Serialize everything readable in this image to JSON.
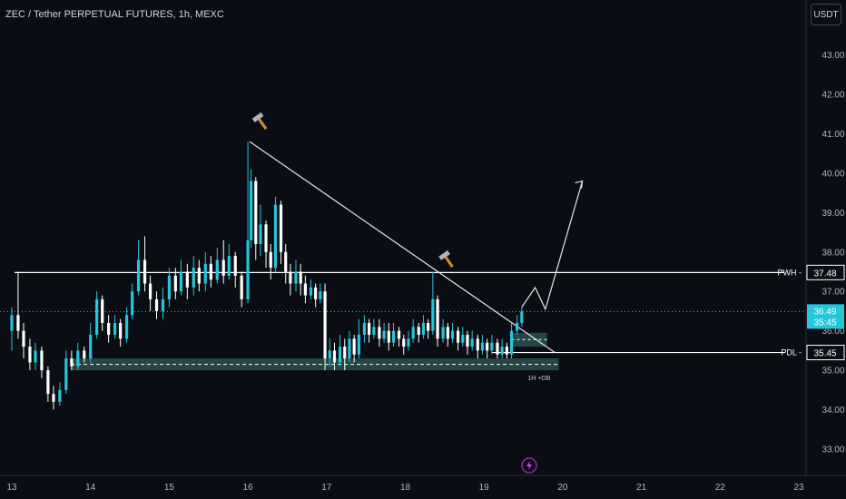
{
  "header": {
    "title": "ZEC / Tether PERPETUAL FUTURES, 1h, MEXC",
    "currency_button": "USDT"
  },
  "colors": {
    "background": "#0b0d14",
    "bull": "#26c6da",
    "bear": "#ffffff",
    "level_line": "#ffffff",
    "ob_zone": "#2f5a55",
    "price_box": "#26c6da"
  },
  "icons": {
    "hammer": "hammer-icon",
    "lightning": "lightning-icon"
  },
  "chart_data": {
    "type": "candlestick",
    "x_ticks": [
      "13",
      "14",
      "15",
      "16",
      "17",
      "18",
      "19",
      "20",
      "21",
      "22",
      "23"
    ],
    "y_ticks": [
      "33.00",
      "34.00",
      "35.00",
      "36.00",
      "37.00",
      "38.00",
      "39.00",
      "40.00",
      "41.00",
      "42.00",
      "43.00"
    ],
    "ylim": [
      32.5,
      43.8
    ],
    "xlim_days": [
      13,
      23
    ],
    "levels": [
      {
        "name": "PWH",
        "value": 37.48,
        "label": "37.48"
      },
      {
        "name": "PDL",
        "value": 35.45,
        "label": "35.45"
      }
    ],
    "current_price": {
      "value": 36.49,
      "label": "36.49",
      "countdown": "35:45"
    },
    "order_block": {
      "label": "1H +OB",
      "low": 35.0,
      "high": 35.3,
      "mid": 35.15
    },
    "key_points": [
      {
        "day": 16.0,
        "price": 40.8,
        "note": "swing high"
      },
      {
        "day": 18.4,
        "price": 37.5,
        "note": "lower high"
      }
    ],
    "candles": [
      [
        13.0,
        36.0,
        36.4,
        36.6,
        35.5
      ],
      [
        13.08,
        36.4,
        36.0,
        37.5,
        35.8
      ],
      [
        13.15,
        36.0,
        35.6,
        36.2,
        35.3
      ],
      [
        13.23,
        35.6,
        35.2,
        35.8,
        35.0
      ],
      [
        13.3,
        35.2,
        35.5,
        35.7,
        35.0
      ],
      [
        13.38,
        35.5,
        35.0,
        35.6,
        34.8
      ],
      [
        13.46,
        35.0,
        34.4,
        35.1,
        34.2
      ],
      [
        13.53,
        34.4,
        34.2,
        34.6,
        34.0
      ],
      [
        13.61,
        34.2,
        34.5,
        34.7,
        34.1
      ],
      [
        13.69,
        34.5,
        35.3,
        35.5,
        34.4
      ],
      [
        13.76,
        35.3,
        35.1,
        35.5,
        35.0
      ],
      [
        13.84,
        35.1,
        35.5,
        35.7,
        35.0
      ],
      [
        13.92,
        35.5,
        35.3,
        35.6,
        35.2
      ],
      [
        14.0,
        35.3,
        35.9,
        36.2,
        35.2
      ],
      [
        14.08,
        35.9,
        36.8,
        37.0,
        35.8
      ],
      [
        14.15,
        36.8,
        36.2,
        36.9,
        36.0
      ],
      [
        14.23,
        36.2,
        35.9,
        36.4,
        35.7
      ],
      [
        14.31,
        35.9,
        36.2,
        36.4,
        35.8
      ],
      [
        14.38,
        36.2,
        35.8,
        36.3,
        35.6
      ],
      [
        14.46,
        35.8,
        36.4,
        36.6,
        35.7
      ],
      [
        14.53,
        36.4,
        37.0,
        37.2,
        36.3
      ],
      [
        14.61,
        37.0,
        37.8,
        38.3,
        36.9
      ],
      [
        14.69,
        37.8,
        37.2,
        38.4,
        37.0
      ],
      [
        14.76,
        37.2,
        36.8,
        37.4,
        36.5
      ],
      [
        14.84,
        36.8,
        36.5,
        37.0,
        36.3
      ],
      [
        14.92,
        36.5,
        36.8,
        37.1,
        36.3
      ],
      [
        15.0,
        36.8,
        37.4,
        37.6,
        36.6
      ],
      [
        15.08,
        37.4,
        37.0,
        37.6,
        36.8
      ],
      [
        15.15,
        37.0,
        37.5,
        37.8,
        36.9
      ],
      [
        15.23,
        37.5,
        37.1,
        37.7,
        36.8
      ],
      [
        15.31,
        37.1,
        37.6,
        37.9,
        36.9
      ],
      [
        15.38,
        37.6,
        37.2,
        37.8,
        37.0
      ],
      [
        15.46,
        37.2,
        37.7,
        38.0,
        37.0
      ],
      [
        15.53,
        37.7,
        37.3,
        37.9,
        37.1
      ],
      [
        15.61,
        37.3,
        37.8,
        38.1,
        37.2
      ],
      [
        15.69,
        37.8,
        37.4,
        38.3,
        37.2
      ],
      [
        15.76,
        37.4,
        37.9,
        38.2,
        37.3
      ],
      [
        15.84,
        37.9,
        37.4,
        38.0,
        37.1
      ],
      [
        15.92,
        37.4,
        36.8,
        37.5,
        36.6
      ],
      [
        16.0,
        36.8,
        38.3,
        40.8,
        36.7
      ],
      [
        16.04,
        38.3,
        39.8,
        40.1,
        38.1
      ],
      [
        16.1,
        39.8,
        38.2,
        39.9,
        37.8
      ],
      [
        16.16,
        38.2,
        38.7,
        39.2,
        37.9
      ],
      [
        16.23,
        38.7,
        38.0,
        38.8,
        37.6
      ],
      [
        16.29,
        38.0,
        37.6,
        38.2,
        37.3
      ],
      [
        16.35,
        37.6,
        39.2,
        39.4,
        37.5
      ],
      [
        16.42,
        39.2,
        38.0,
        39.3,
        37.7
      ],
      [
        16.48,
        38.0,
        37.5,
        38.2,
        37.2
      ],
      [
        16.54,
        37.5,
        37.2,
        37.7,
        36.9
      ],
      [
        16.61,
        37.2,
        37.5,
        37.8,
        37.0
      ],
      [
        16.67,
        37.5,
        37.2,
        37.7,
        36.9
      ],
      [
        16.73,
        37.2,
        36.9,
        37.4,
        36.7
      ],
      [
        16.8,
        36.9,
        37.1,
        37.3,
        36.8
      ],
      [
        16.86,
        37.1,
        36.8,
        37.2,
        36.6
      ],
      [
        16.92,
        36.8,
        37.0,
        37.2,
        36.7
      ],
      [
        16.98,
        37.0,
        35.3,
        37.2,
        35.0
      ],
      [
        17.04,
        35.3,
        35.5,
        35.8,
        35.1
      ],
      [
        17.1,
        35.5,
        35.2,
        35.7,
        35.0
      ],
      [
        17.17,
        35.2,
        35.6,
        35.9,
        35.1
      ],
      [
        17.23,
        35.6,
        35.3,
        35.8,
        35.0
      ],
      [
        17.29,
        35.3,
        35.8,
        36.0,
        35.2
      ],
      [
        17.35,
        35.8,
        35.4,
        35.9,
        35.2
      ],
      [
        17.41,
        35.4,
        35.9,
        36.3,
        35.3
      ],
      [
        17.48,
        35.9,
        36.2,
        36.4,
        35.7
      ],
      [
        17.54,
        36.2,
        35.9,
        36.3,
        35.7
      ],
      [
        17.6,
        35.9,
        36.1,
        36.3,
        35.8
      ],
      [
        17.67,
        36.1,
        35.8,
        36.3,
        35.6
      ],
      [
        17.73,
        35.8,
        36.0,
        36.2,
        35.7
      ],
      [
        17.79,
        36.0,
        35.7,
        36.2,
        35.5
      ],
      [
        17.85,
        35.7,
        36.0,
        36.2,
        35.6
      ],
      [
        17.92,
        36.0,
        35.8,
        36.1,
        35.6
      ],
      [
        17.98,
        35.8,
        35.6,
        35.9,
        35.4
      ],
      [
        18.04,
        35.6,
        35.8,
        36.0,
        35.5
      ],
      [
        18.1,
        35.8,
        36.1,
        36.3,
        35.7
      ],
      [
        18.17,
        36.1,
        35.9,
        36.2,
        35.7
      ],
      [
        18.23,
        35.9,
        36.2,
        36.4,
        35.8
      ],
      [
        18.29,
        36.2,
        36.0,
        36.3,
        35.8
      ],
      [
        18.35,
        36.0,
        36.8,
        37.5,
        35.9
      ],
      [
        18.41,
        36.8,
        35.8,
        36.9,
        35.6
      ],
      [
        18.48,
        35.8,
        36.1,
        36.3,
        35.7
      ],
      [
        18.54,
        36.1,
        35.8,
        36.2,
        35.6
      ],
      [
        18.6,
        35.8,
        36.0,
        36.2,
        35.7
      ],
      [
        18.67,
        36.0,
        35.7,
        36.1,
        35.5
      ],
      [
        18.73,
        35.7,
        35.9,
        36.1,
        35.6
      ],
      [
        18.79,
        35.9,
        35.6,
        36.0,
        35.4
      ],
      [
        18.85,
        35.6,
        35.8,
        36.0,
        35.5
      ],
      [
        18.92,
        35.8,
        35.5,
        35.9,
        35.3
      ],
      [
        18.98,
        35.5,
        35.7,
        35.9,
        35.4
      ],
      [
        19.04,
        35.7,
        35.5,
        35.8,
        35.3
      ],
      [
        19.1,
        35.5,
        35.7,
        35.9,
        35.4
      ],
      [
        19.17,
        35.7,
        35.4,
        35.8,
        35.3
      ],
      [
        19.23,
        35.4,
        35.6,
        35.8,
        35.3
      ],
      [
        19.29,
        35.6,
        35.4,
        35.7,
        35.3
      ],
      [
        19.35,
        35.4,
        36.0,
        36.2,
        35.3
      ],
      [
        19.42,
        36.0,
        36.2,
        36.4,
        35.9
      ],
      [
        19.48,
        36.2,
        36.49,
        36.6,
        36.1
      ]
    ]
  }
}
